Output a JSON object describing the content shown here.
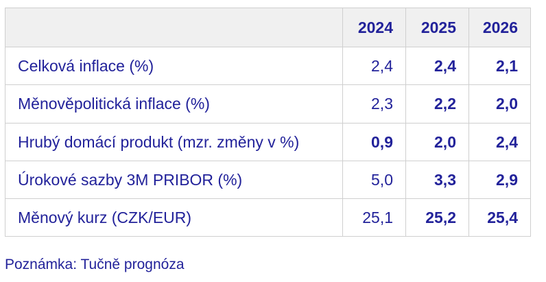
{
  "table": {
    "header": {
      "corner": "",
      "years": [
        "2024",
        "2025",
        "2026"
      ]
    },
    "rows": [
      {
        "label": "Celková inflace (%)",
        "values": [
          "2,4",
          "2,4",
          "2,1"
        ],
        "bold": [
          false,
          true,
          true
        ]
      },
      {
        "label": "Měnověpolitická inflace (%)",
        "values": [
          "2,3",
          "2,2",
          "2,0"
        ],
        "bold": [
          false,
          true,
          true
        ]
      },
      {
        "label": "Hrubý domácí produkt (mzr. změny v %)",
        "values": [
          "0,9",
          "2,0",
          "2,4"
        ],
        "bold": [
          true,
          true,
          true
        ]
      },
      {
        "label": "Úrokové sazby 3M PRIBOR (%)",
        "values": [
          "5,0",
          "3,3",
          "2,9"
        ],
        "bold": [
          false,
          true,
          true
        ]
      },
      {
        "label": "Měnový kurz (CZK/EUR)",
        "values": [
          "25,1",
          "25,2",
          "25,4"
        ],
        "bold": [
          false,
          true,
          true
        ]
      }
    ]
  },
  "note": "Poznámka: Tučně prognóza",
  "colors": {
    "text": "#22229a",
    "header_bg": "#f0f0f0",
    "border": "#cfcfcf"
  }
}
